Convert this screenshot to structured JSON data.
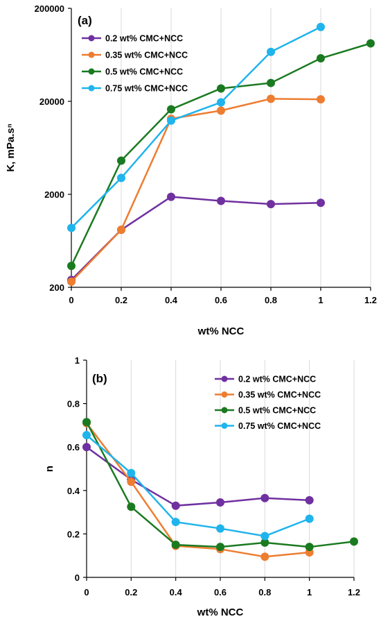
{
  "chart_data": [
    {
      "type": "line",
      "panel_label": "(a)",
      "xlabel": "wt% NCC",
      "ylabel": "K, mPa.sⁿ",
      "yscale": "log",
      "ylim": [
        200,
        200000
      ],
      "xlim": [
        0,
        1.2
      ],
      "xticks": [
        "0",
        "0.2",
        "0.4",
        "0.6",
        "0.8",
        "1",
        "1.2"
      ],
      "xtick_values": [
        0,
        0.2,
        0.4,
        0.6,
        0.8,
        1,
        1.2
      ],
      "yticks": [
        "200000",
        "20000",
        "2000",
        "200"
      ],
      "ytick_values": [
        200000,
        20000,
        2000,
        200
      ],
      "grid": "vertical",
      "legend_position": "top-left",
      "series": [
        {
          "name": "0.2 wt% CMC+NCC",
          "color": "#7030a0",
          "x": [
            0,
            0.2,
            0.4,
            0.6,
            0.8,
            1
          ],
          "values": [
            240,
            830,
            1880,
            1700,
            1570,
            1620
          ]
        },
        {
          "name": "0.35 wt% CMC+NCC",
          "color": "#ed7d31",
          "x": [
            0,
            0.2,
            0.4,
            0.6,
            0.8,
            1
          ],
          "values": [
            230,
            830,
            13000,
            15900,
            21300,
            21000
          ]
        },
        {
          "name": "0.5 wt% CMC+NCC",
          "color": "#1a7a20",
          "x": [
            0,
            0.2,
            0.4,
            0.6,
            0.8,
            1,
            1.2
          ],
          "values": [
            340,
            4600,
            16400,
            27500,
            31500,
            58000,
            84000
          ]
        },
        {
          "name": "0.75 wt% CMC+NCC",
          "color": "#1fb4ec",
          "x": [
            0,
            0.2,
            0.4,
            0.6,
            0.8,
            1
          ],
          "values": [
            870,
            3000,
            12400,
            19500,
            68000,
            126000
          ]
        }
      ]
    },
    {
      "type": "line",
      "panel_label": "(b)",
      "xlabel": "wt% NCC",
      "ylabel": "n",
      "ylim": [
        0,
        1
      ],
      "xlim": [
        0,
        1.2
      ],
      "xticks": [
        "0",
        "0.2",
        "0.4",
        "0.6",
        "0.8",
        "1",
        "1.2"
      ],
      "xtick_values": [
        0,
        0.2,
        0.4,
        0.6,
        0.8,
        1,
        1.2
      ],
      "yticks": [
        "1",
        "0.8",
        "0.6",
        "0.4",
        "0.2",
        "0"
      ],
      "ytick_values": [
        1,
        0.8,
        0.6,
        0.4,
        0.2,
        0
      ],
      "grid": "vertical",
      "legend_position": "top-right",
      "series": [
        {
          "name": "0.2 wt% CMC+NCC",
          "color": "#7030a0",
          "x": [
            0,
            0.2,
            0.4,
            0.6,
            0.8,
            1
          ],
          "values": [
            0.6,
            0.45,
            0.33,
            0.345,
            0.365,
            0.355
          ]
        },
        {
          "name": "0.35 wt% CMC+NCC",
          "color": "#ed7d31",
          "x": [
            0,
            0.2,
            0.4,
            0.6,
            0.8,
            1
          ],
          "values": [
            0.71,
            0.44,
            0.145,
            0.13,
            0.095,
            0.115
          ]
        },
        {
          "name": "0.5 wt% CMC+NCC",
          "color": "#1a7a20",
          "x": [
            0,
            0.2,
            0.4,
            0.6,
            0.8,
            1,
            1.2
          ],
          "values": [
            0.715,
            0.325,
            0.15,
            0.14,
            0.16,
            0.14,
            0.165
          ]
        },
        {
          "name": "0.75 wt% CMC+NCC",
          "color": "#1fb4ec",
          "x": [
            0,
            0.2,
            0.4,
            0.6,
            0.8,
            1
          ],
          "values": [
            0.655,
            0.48,
            0.255,
            0.225,
            0.19,
            0.27
          ]
        }
      ]
    }
  ]
}
